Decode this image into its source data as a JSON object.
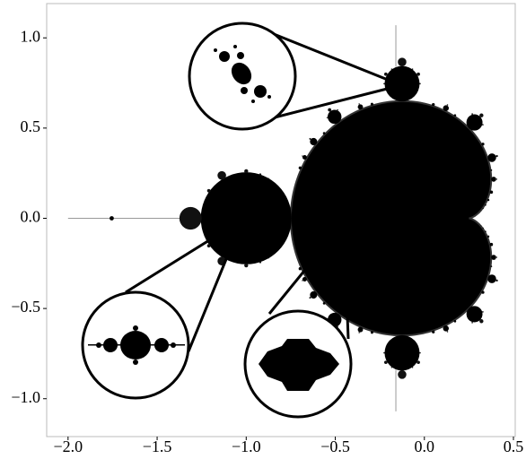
{
  "chart_data": {
    "type": "mandelbrot",
    "xlim": [
      -2.12,
      0.51
    ],
    "ylim": [
      -1.21,
      1.19
    ],
    "xticks": [
      {
        "value": -2.0,
        "label": "−2.0"
      },
      {
        "value": -1.5,
        "label": "−1.5"
      },
      {
        "value": -1.0,
        "label": "−1.0"
      },
      {
        "value": -0.5,
        "label": "−0.5"
      },
      {
        "value": 0.0,
        "label": "0.0"
      },
      0.5
    ],
    "yticks": [
      {
        "value": -1.0,
        "label": "−1.0"
      },
      {
        "value": -0.5,
        "label": "−0.5"
      },
      {
        "value": 0.0,
        "label": "0.0"
      },
      0.5,
      {
        "value": 1.0,
        "label": "1.0"
      }
    ]
  }
}
